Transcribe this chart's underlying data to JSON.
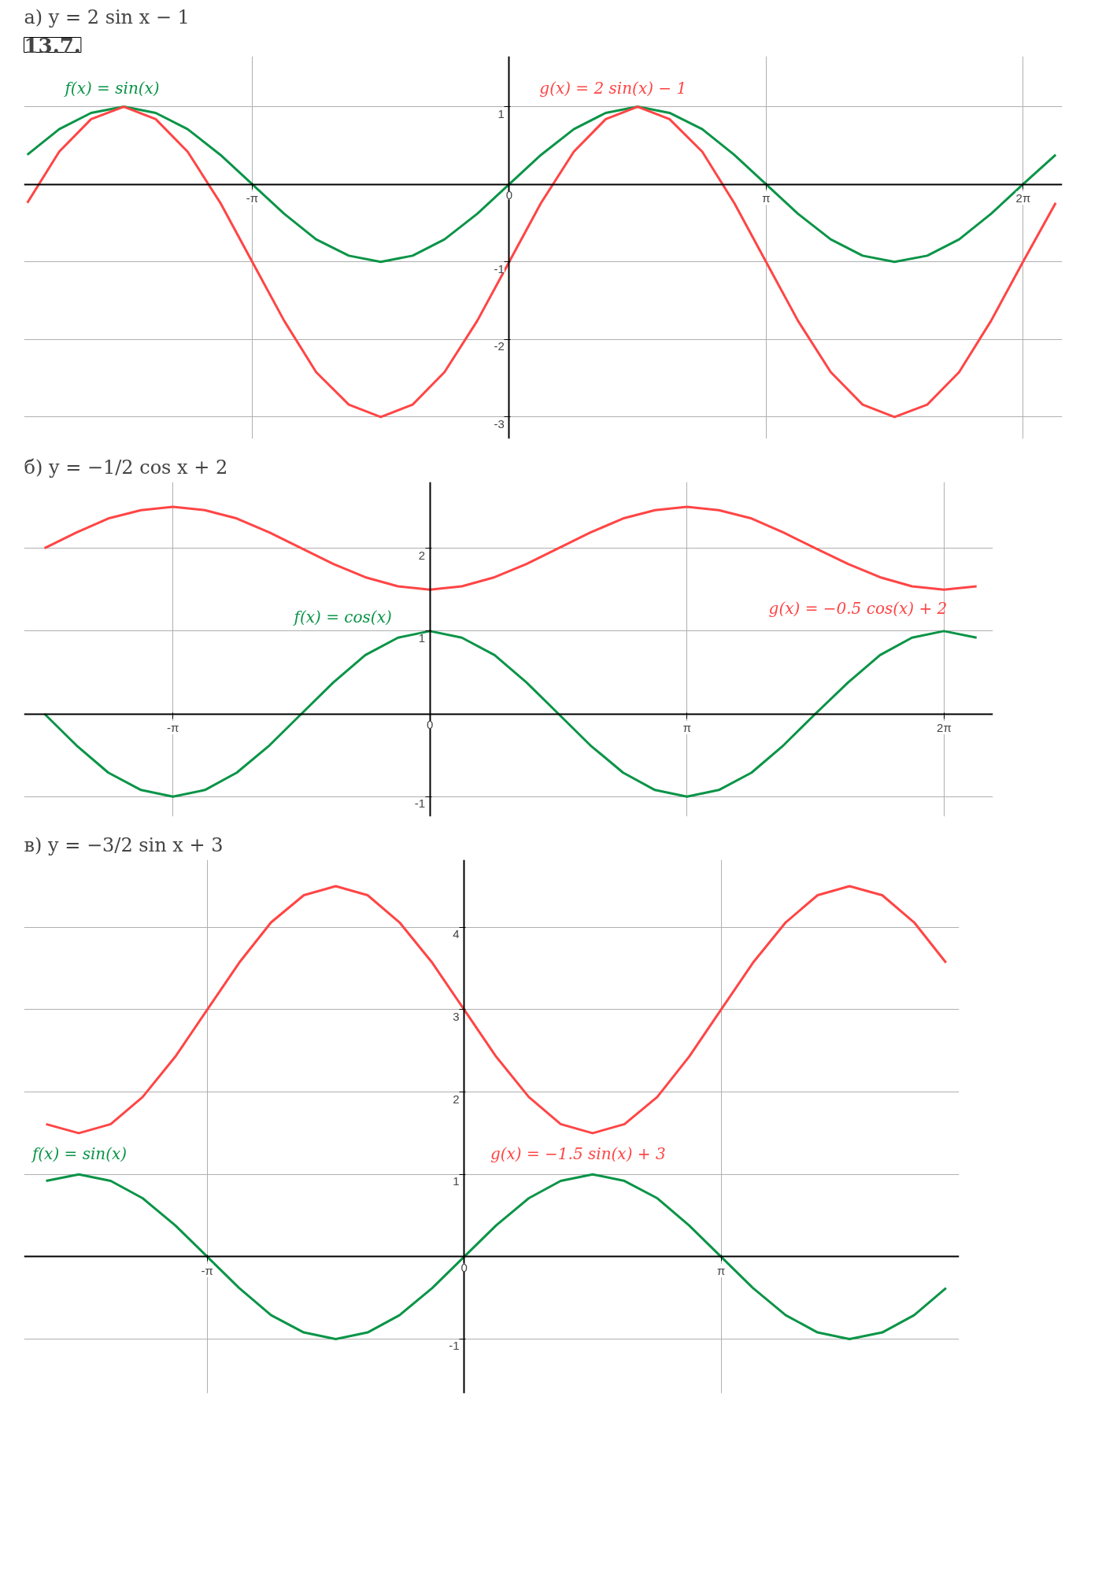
{
  "chart_data": [
    {
      "type": "line",
      "title": "а) y = 2 sin x − 1",
      "annotations": [
        "13.7."
      ],
      "xlim": [
        -5.93,
        6.76
      ],
      "ylim": [
        -3.28,
        1.65
      ],
      "xticks": [
        {
          "value": -3.1416,
          "label": "-π"
        },
        0,
        {
          "value": 3.1416,
          "label": "π"
        },
        {
          "value": 6.2832,
          "label": "2π"
        }
      ],
      "yticks": [
        -3,
        -2,
        -1,
        1
      ],
      "grid": true,
      "line_style": "solid",
      "x": [
        -5.89,
        -5.5,
        -5.11,
        -4.71,
        -4.32,
        -3.93,
        -3.53,
        -3.14,
        -2.75,
        -2.36,
        -1.96,
        -1.57,
        -1.18,
        -0.79,
        -0.39,
        0,
        0.39,
        0.79,
        1.18,
        1.57,
        1.96,
        2.36,
        2.75,
        3.14,
        3.53,
        3.93,
        4.32,
        4.71,
        5.11,
        5.5,
        5.89,
        6.28,
        6.68
      ],
      "series": [
        {
          "name": "f(x) = sin(x)",
          "color": "#0a9447",
          "values": [
            0.38,
            0.71,
            0.92,
            1,
            0.92,
            0.71,
            0.38,
            0,
            -0.38,
            -0.71,
            -0.92,
            -1,
            -0.92,
            -0.71,
            -0.38,
            0,
            0.38,
            0.71,
            0.92,
            1,
            0.92,
            0.71,
            0.38,
            0,
            -0.38,
            -0.71,
            -0.92,
            -1,
            -0.92,
            -0.71,
            -0.38,
            0,
            0.38
          ]
        },
        {
          "name": "g(x) = 2 sin(x) − 1",
          "color": "#ff4545",
          "values": [
            -0.24,
            0.42,
            0.84,
            1,
            0.84,
            0.42,
            -0.24,
            -1,
            -1.76,
            -2.42,
            -2.84,
            -3,
            -2.84,
            -2.42,
            -1.76,
            -1,
            -0.24,
            0.42,
            0.84,
            1,
            0.84,
            0.42,
            -0.24,
            -1,
            -1.76,
            -2.42,
            -2.84,
            -3,
            -2.84,
            -2.42,
            -1.76,
            -1,
            -0.24
          ]
        }
      ]
    },
    {
      "type": "line",
      "title": "б) y = −1/2 cos x + 2",
      "xlim": [
        -4.96,
        6.88
      ],
      "ylim": [
        -1.24,
        2.8
      ],
      "xticks": [
        {
          "value": -3.1416,
          "label": "-π"
        },
        0,
        {
          "value": 3.1416,
          "label": "π"
        },
        {
          "value": 6.2832,
          "label": "2π"
        }
      ],
      "yticks": [
        -1,
        1,
        2
      ],
      "grid": true,
      "line_style": "solid",
      "x": [
        -4.71,
        -4.32,
        -3.93,
        -3.53,
        -3.14,
        -2.75,
        -2.36,
        -1.96,
        -1.57,
        -1.18,
        -0.79,
        -0.39,
        0,
        0.39,
        0.79,
        1.18,
        1.57,
        1.96,
        2.36,
        2.75,
        3.14,
        3.53,
        3.93,
        4.32,
        4.71,
        5.11,
        5.5,
        5.89,
        6.28,
        6.68
      ],
      "series": [
        {
          "name": "g(x) = −0.5 cos(x) + 2",
          "color": "#ff4545",
          "values": [
            2,
            2.19,
            2.36,
            2.46,
            2.5,
            2.46,
            2.36,
            2.19,
            2,
            1.81,
            1.65,
            1.54,
            1.5,
            1.54,
            1.65,
            1.81,
            2,
            2.19,
            2.36,
            2.46,
            2.5,
            2.46,
            2.36,
            2.19,
            2,
            1.81,
            1.65,
            1.54,
            1.5,
            1.54
          ]
        },
        {
          "name": "f(x) = cos(x)",
          "color": "#0a9447",
          "values": [
            0,
            -0.38,
            -0.71,
            -0.92,
            -1,
            -0.92,
            -0.71,
            -0.38,
            0,
            0.38,
            0.71,
            0.92,
            1,
            0.92,
            0.71,
            0.38,
            0,
            -0.38,
            -0.71,
            -0.92,
            -1,
            -0.92,
            -0.71,
            -0.38,
            0,
            0.38,
            0.71,
            0.92,
            1,
            0.92
          ]
        }
      ]
    },
    {
      "type": "line",
      "title": "в) y = −3/2 sin x + 3",
      "xlim": [
        -5.38,
        6.05
      ],
      "ylim": [
        -1.66,
        4.82
      ],
      "xticks": [
        {
          "value": -3.1416,
          "label": "-π"
        },
        0,
        {
          "value": 3.1416,
          "label": "π"
        }
      ],
      "yticks": [
        -1,
        1,
        2,
        3,
        4
      ],
      "grid": true,
      "line_style": "solid",
      "x": [
        -5.11,
        -4.71,
        -4.32,
        -3.93,
        -3.53,
        -3.14,
        -2.75,
        -2.36,
        -1.96,
        -1.57,
        -1.18,
        -0.79,
        -0.39,
        0,
        0.39,
        0.79,
        1.18,
        1.57,
        1.96,
        2.36,
        2.75,
        3.14,
        3.53,
        3.93,
        4.32,
        4.71,
        5.11,
        5.5,
        5.89
      ],
      "series": [
        {
          "name": "g(x) = −1.5 sin(x) + 3",
          "color": "#ff4545",
          "values": [
            1.61,
            1.5,
            1.61,
            1.94,
            2.43,
            3,
            3.57,
            4.06,
            4.39,
            4.5,
            4.39,
            4.06,
            3.57,
            3,
            2.43,
            1.94,
            1.61,
            1.5,
            1.61,
            1.94,
            2.43,
            3,
            3.57,
            4.06,
            4.39,
            4.5,
            4.39,
            4.06,
            3.57
          ]
        },
        {
          "name": "f(x) = sin(x)",
          "color": "#0a9447",
          "values": [
            0.92,
            1,
            0.92,
            0.71,
            0.38,
            0,
            -0.38,
            -0.71,
            -0.92,
            -1,
            -0.92,
            -0.71,
            -0.38,
            0,
            0.38,
            0.71,
            0.92,
            1,
            0.92,
            0.71,
            0.38,
            0,
            -0.38,
            -0.71,
            -0.92,
            -1,
            -0.92,
            -0.71,
            -0.38
          ]
        }
      ]
    }
  ]
}
